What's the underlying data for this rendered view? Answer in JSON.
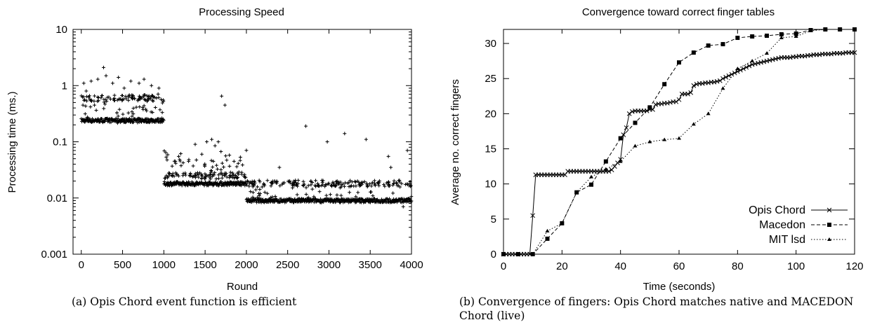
{
  "chart_data": [
    {
      "type": "scatter",
      "title": "Processing Speed",
      "xlabel": "Round",
      "ylabel": "Processing time (ms.)",
      "xlim": [
        -100,
        4000
      ],
      "ylim": [
        0.001,
        10
      ],
      "yscale": "log",
      "grid": false,
      "xticks": [
        "0",
        "500",
        "1000",
        "1500",
        "2000",
        "2500",
        "3000",
        "3500",
        "4000"
      ],
      "yticks": [
        "0.001",
        "0.01",
        "0.1",
        "1",
        "10"
      ],
      "marker": "+",
      "phases": [
        {
          "x_range": [
            0,
            1000
          ],
          "base_ms": 0.24,
          "secondary_ms": 0.6,
          "scattered_ms": [
            0.3,
            0.5
          ]
        },
        {
          "x_range": [
            1000,
            2000
          ],
          "base_ms": 0.018,
          "secondary_ms": 0.025,
          "scattered_ms": [
            0.03,
            0.05
          ]
        },
        {
          "x_range": [
            2000,
            4000
          ],
          "base_ms": 0.009,
          "secondary_ms": 0.018,
          "scattered_ms": [
            0.012
          ]
        }
      ],
      "outliers": [
        {
          "x": 30,
          "y": 1.1
        },
        {
          "x": 60,
          "y": 0.8
        },
        {
          "x": 120,
          "y": 1.2
        },
        {
          "x": 200,
          "y": 1.3
        },
        {
          "x": 270,
          "y": 2.1
        },
        {
          "x": 300,
          "y": 1.5
        },
        {
          "x": 380,
          "y": 1.1
        },
        {
          "x": 450,
          "y": 1.4
        },
        {
          "x": 520,
          "y": 0.9
        },
        {
          "x": 600,
          "y": 1.2
        },
        {
          "x": 700,
          "y": 1.1
        },
        {
          "x": 760,
          "y": 1.3
        },
        {
          "x": 850,
          "y": 1.0
        },
        {
          "x": 940,
          "y": 0.9
        },
        {
          "x": 20,
          "y": 0.45
        },
        {
          "x": 1140,
          "y": 0.045
        },
        {
          "x": 1180,
          "y": 0.055
        },
        {
          "x": 1300,
          "y": 0.045
        },
        {
          "x": 1380,
          "y": 0.09
        },
        {
          "x": 1460,
          "y": 0.06
        },
        {
          "x": 1520,
          "y": 0.1
        },
        {
          "x": 1580,
          "y": 0.11
        },
        {
          "x": 1620,
          "y": 0.085
        },
        {
          "x": 1660,
          "y": 0.1
        },
        {
          "x": 1700,
          "y": 0.65
        },
        {
          "x": 1740,
          "y": 0.45
        },
        {
          "x": 1600,
          "y": 0.045
        },
        {
          "x": 1850,
          "y": 0.045
        },
        {
          "x": 2050,
          "y": 0.013
        },
        {
          "x": 2150,
          "y": 0.012
        },
        {
          "x": 2400,
          "y": 0.035
        },
        {
          "x": 2720,
          "y": 0.19
        },
        {
          "x": 2980,
          "y": 0.1
        },
        {
          "x": 3190,
          "y": 0.14
        },
        {
          "x": 3450,
          "y": 0.11
        },
        {
          "x": 3720,
          "y": 0.055
        },
        {
          "x": 3750,
          "y": 0.035
        },
        {
          "x": 3950,
          "y": 0.07
        },
        {
          "x": 3600,
          "y": 0.018
        },
        {
          "x": 3880,
          "y": 0.018
        },
        {
          "x": 3900,
          "y": 0.007
        },
        {
          "x": 3100,
          "y": 0.02
        },
        {
          "x": 2600,
          "y": 0.017
        }
      ],
      "caption": "(a)  Opis Chord event function is efficient"
    },
    {
      "type": "line",
      "title": "Convergence toward correct finger tables",
      "xlabel": "Time (seconds)",
      "ylabel": "Average no. correct fingers",
      "xlim": [
        0,
        120
      ],
      "ylim": [
        0,
        32
      ],
      "grid": false,
      "legend": "bottom-right",
      "xticks": [
        "0",
        "20",
        "40",
        "60",
        "80",
        "100",
        "120"
      ],
      "yticks": [
        "0",
        "5",
        "10",
        "15",
        "20",
        "25",
        "30"
      ],
      "series": [
        {
          "name": "Opis Chord",
          "marker": "x",
          "dash": "solid",
          "x": [
            0,
            1,
            2,
            3,
            4,
            5,
            6,
            7,
            8,
            9,
            10,
            11,
            12,
            13,
            14,
            15,
            16,
            17,
            18,
            19,
            20,
            21,
            22,
            23,
            24,
            25,
            26,
            27,
            28,
            29,
            30,
            31,
            32,
            33,
            34,
            35,
            36,
            37,
            38,
            39,
            40,
            41,
            42,
            43,
            44,
            45,
            46,
            47,
            48,
            49,
            50,
            51,
            52,
            53,
            54,
            55,
            56,
            57,
            58,
            59,
            60,
            61,
            62,
            63,
            64,
            65,
            66,
            67,
            68,
            69,
            70,
            71,
            72,
            73,
            74,
            75,
            76,
            77,
            78,
            79,
            80,
            81,
            82,
            83,
            84,
            85,
            86,
            87,
            88,
            89,
            90,
            91,
            92,
            93,
            94,
            95,
            96,
            97,
            98,
            99,
            100,
            101,
            102,
            103,
            104,
            105,
            106,
            107,
            108,
            109,
            110,
            111,
            112,
            113,
            114,
            115,
            116,
            117,
            118,
            119,
            120
          ],
          "y": [
            0,
            0,
            0,
            0,
            0,
            0,
            0,
            0,
            0,
            0,
            5.5,
            11.3,
            11.3,
            11.3,
            11.3,
            11.3,
            11.3,
            11.3,
            11.3,
            11.3,
            11.3,
            11.3,
            11.8,
            11.8,
            11.8,
            11.8,
            11.8,
            11.8,
            11.8,
            11.8,
            11.8,
            11.8,
            11.8,
            11.8,
            11.8,
            11.8,
            11.8,
            12.0,
            12.5,
            13.0,
            13.5,
            17.0,
            18.0,
            20.0,
            20.3,
            20.4,
            20.4,
            20.4,
            20.4,
            20.4,
            20.6,
            20.6,
            21.3,
            21.4,
            21.4,
            21.5,
            21.5,
            21.6,
            21.7,
            21.7,
            22.0,
            22.8,
            22.8,
            22.8,
            23.0,
            24.0,
            24.2,
            24.3,
            24.3,
            24.4,
            24.4,
            24.5,
            24.5,
            24.6,
            24.7,
            25.0,
            25.2,
            25.4,
            25.6,
            25.8,
            26.0,
            26.2,
            26.4,
            26.6,
            26.8,
            27.0,
            27.1,
            27.2,
            27.3,
            27.4,
            27.5,
            27.6,
            27.7,
            27.8,
            27.9,
            28.0,
            28.0,
            28.0,
            28.0,
            28.1,
            28.1,
            28.2,
            28.2,
            28.2,
            28.3,
            28.3,
            28.4,
            28.4,
            28.4,
            28.5,
            28.5,
            28.5,
            28.5,
            28.6,
            28.6,
            28.6,
            28.6,
            28.7,
            28.7,
            28.7,
            28.7
          ]
        },
        {
          "name": "Macedon",
          "marker": "square",
          "dash": "dashed",
          "x": [
            0,
            5,
            10,
            15,
            20,
            25,
            30,
            35,
            40,
            45,
            50,
            55,
            60,
            65,
            70,
            75,
            80,
            85,
            90,
            95,
            100,
            105,
            110,
            115,
            120
          ],
          "y": [
            0,
            0,
            0,
            2.2,
            4.4,
            8.8,
            9.9,
            13.2,
            16.5,
            18.7,
            20.9,
            24.2,
            27.3,
            28.7,
            29.7,
            29.9,
            30.8,
            31.0,
            31.1,
            31.3,
            31.4,
            31.9,
            32.0,
            32.0,
            32.0
          ]
        },
        {
          "name": "MIT lsd",
          "marker": "triangle",
          "dash": "dotted",
          "x": [
            0,
            5,
            10,
            15,
            20,
            25,
            30,
            35,
            40,
            45,
            50,
            55,
            60,
            65,
            70,
            75,
            80,
            85,
            90,
            95,
            100,
            105,
            110,
            115,
            120
          ],
          "y": [
            0,
            0,
            0,
            3.3,
            4.4,
            8.8,
            11.0,
            12.1,
            13.2,
            15.4,
            16.0,
            16.3,
            16.5,
            18.5,
            20.0,
            23.6,
            26.4,
            27.5,
            28.6,
            30.8,
            31.0,
            31.8,
            32.0,
            32.0,
            32.0
          ]
        }
      ],
      "caption": "(b)  Convergence of fingers: Opis Chord matches native and MACEDON Chord (live)"
    }
  ]
}
